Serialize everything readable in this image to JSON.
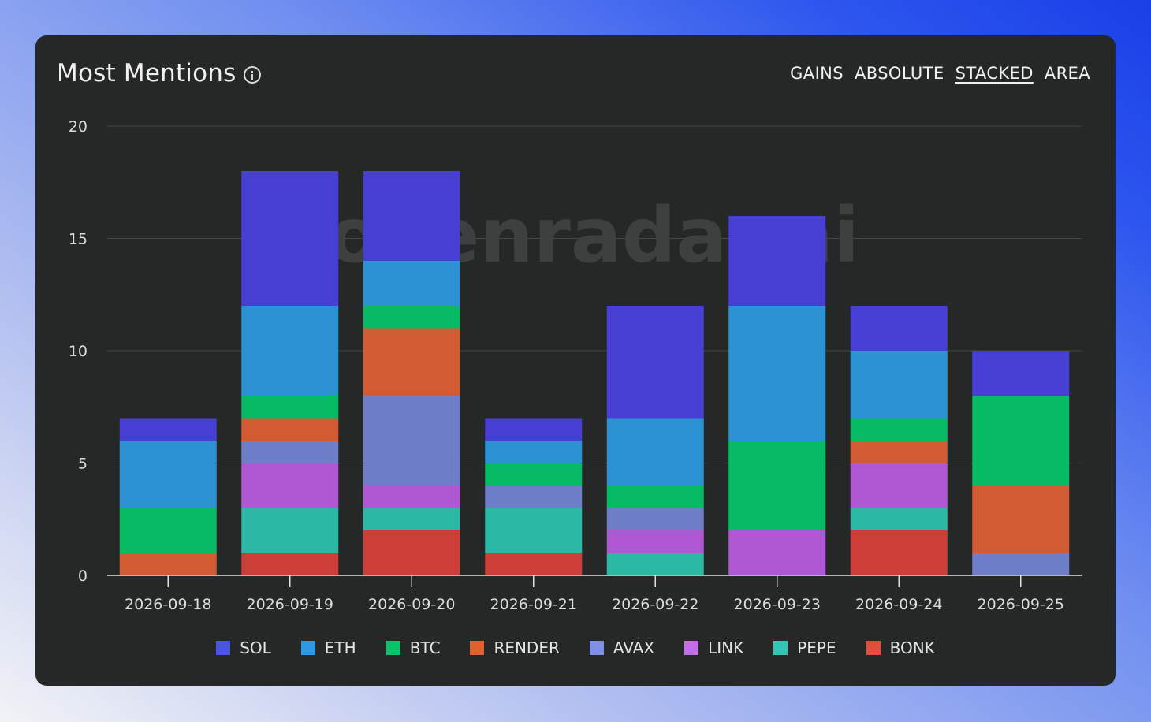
{
  "header": {
    "title": "Most Mentions",
    "modes": [
      "GAINS",
      "ABSOLUTE",
      "STACKED",
      "AREA"
    ],
    "active_mode": "STACKED"
  },
  "watermark": "tokenradar.ai",
  "chart_data": {
    "type": "bar",
    "stacked": true,
    "categories": [
      "2026-09-18",
      "2026-09-19",
      "2026-09-20",
      "2026-09-21",
      "2026-09-22",
      "2026-09-23",
      "2026-09-24",
      "2026-09-25"
    ],
    "ylim": [
      0,
      20
    ],
    "yticks": [
      0,
      5,
      10,
      15,
      20
    ],
    "grid": true,
    "legend_position": "bottom",
    "series": [
      {
        "name": "BONK",
        "color": "#cc3f38",
        "values": [
          0,
          1,
          2,
          1,
          0,
          0,
          2,
          0
        ]
      },
      {
        "name": "PEPE",
        "color": "#2bb8a5",
        "values": [
          0,
          2,
          1,
          2,
          1,
          0,
          1,
          0
        ]
      },
      {
        "name": "LINK",
        "color": "#b058d4",
        "values": [
          0,
          2,
          1,
          0,
          1,
          2,
          2,
          0
        ]
      },
      {
        "name": "AVAX",
        "color": "#6e7ec9",
        "values": [
          0,
          1,
          4,
          1,
          1,
          0,
          0,
          1
        ]
      },
      {
        "name": "RENDER",
        "color": "#d35b33",
        "values": [
          1,
          1,
          3,
          0,
          0,
          0,
          1,
          3
        ]
      },
      {
        "name": "BTC",
        "color": "#07ba64",
        "values": [
          2,
          1,
          1,
          1,
          1,
          4,
          1,
          4
        ]
      },
      {
        "name": "ETH",
        "color": "#2c92d4",
        "values": [
          3,
          4,
          2,
          1,
          3,
          6,
          3,
          0
        ]
      },
      {
        "name": "SOL",
        "color": "#473ed4",
        "values": [
          1,
          6,
          4,
          1,
          5,
          4,
          2,
          2
        ]
      }
    ]
  },
  "legend": [
    {
      "label": "SOL",
      "color": "#4a56e0"
    },
    {
      "label": "ETH",
      "color": "#2e9ae6"
    },
    {
      "label": "BTC",
      "color": "#0cc26a"
    },
    {
      "label": "RENDER",
      "color": "#e0602e"
    },
    {
      "label": "AVAX",
      "color": "#7f8fe6"
    },
    {
      "label": "LINK",
      "color": "#c36de6"
    },
    {
      "label": "PEPE",
      "color": "#31c7b6"
    },
    {
      "label": "BONK",
      "color": "#e04f3c"
    }
  ]
}
